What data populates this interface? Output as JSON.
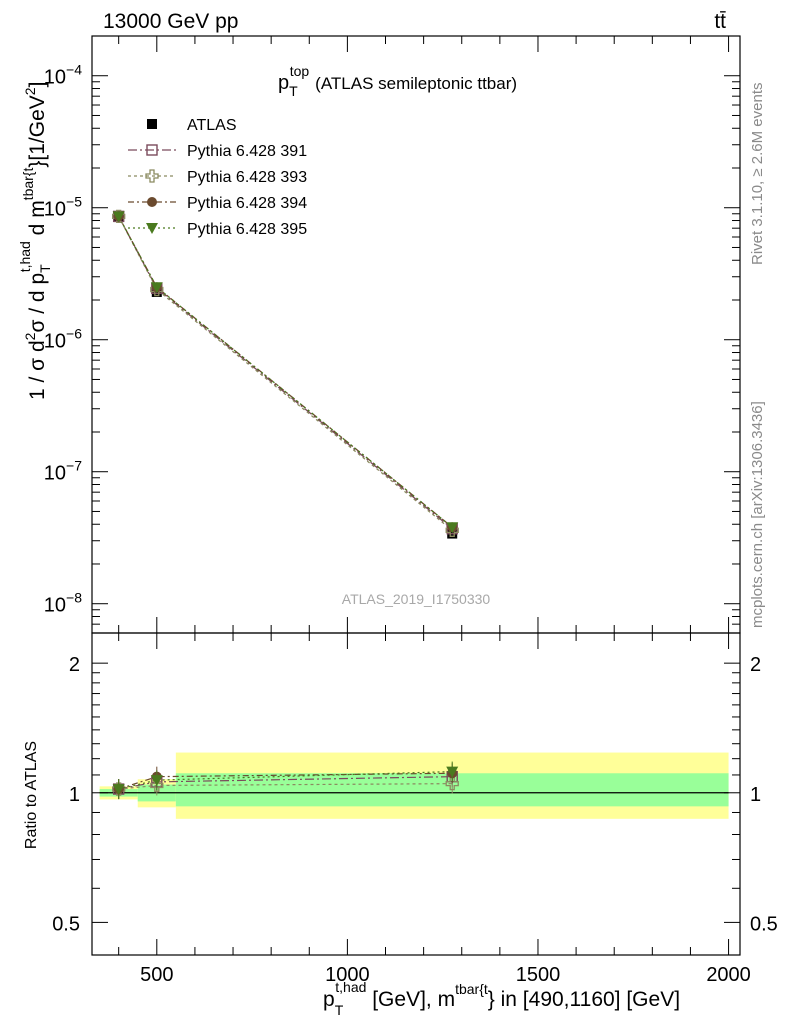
{
  "header": {
    "left": "13000 GeV pp",
    "right": "tt̄"
  },
  "side_text": {
    "rivet": "Rivet 3.1.10, ≥ 2.6M events",
    "mcplots": "mcplots.cern.ch [arXiv:1306.3436]"
  },
  "colors": {
    "atlas": "#000000",
    "py391": "#7b4b5c",
    "py393": "#8b8b60",
    "py394": "#6b4a2e",
    "py395": "#4a7a1e",
    "band_inner": "#99ff99",
    "band_outer": "#ffff99"
  },
  "chart_data": [
    {
      "type": "line",
      "title_main": "p",
      "title_sub": "T",
      "title_sup": "top",
      "title_rest": "(ATLAS semileptonic ttbar)",
      "ylabel_parts": {
        "a": "1 / σ d",
        "b": "2",
        "c": "σ / d p",
        "d": "T",
        "e": "t,had",
        "f": " d m",
        "g": "tbar{t",
        "h": "}[1/GeV",
        "i": "2",
        "j": "]"
      },
      "watermark": "ATLAS_2019_I1750330",
      "y_scale": "log",
      "xlim": [
        330,
        2030
      ],
      "ylim": [
        6e-09,
        0.0002
      ],
      "y_ticks": [
        {
          "v": 1e-08,
          "base": "10",
          "exp": "−8"
        },
        {
          "v": 1e-07,
          "base": "10",
          "exp": "−7"
        },
        {
          "v": 1e-06,
          "base": "10",
          "exp": "−6"
        },
        {
          "v": 1e-05,
          "base": "10",
          "exp": "−5"
        },
        {
          "v": 0.0001,
          "base": "10",
          "exp": "−4"
        }
      ],
      "legend_placement": "top-left",
      "series": [
        {
          "name": "ATLAS",
          "key": "atlas",
          "marker": "square-filled",
          "x": [
            400,
            500,
            1275
          ],
          "y": [
            8.5e-06,
            2.3e-06,
            3.4e-08
          ]
        },
        {
          "name": "Pythia 6.428 391",
          "key": "py391",
          "marker": "square-open",
          "x": [
            400,
            500,
            1275
          ],
          "y": [
            8.6e-06,
            2.45e-06,
            3.7e-08
          ]
        },
        {
          "name": "Pythia 6.428 393",
          "key": "py393",
          "marker": "cross-open",
          "x": [
            400,
            500,
            1275
          ],
          "y": [
            8.6e-06,
            2.4e-06,
            3.6e-08
          ]
        },
        {
          "name": "Pythia 6.428 394",
          "key": "py394",
          "marker": "circle-filled",
          "x": [
            400,
            500,
            1275
          ],
          "y": [
            8.6e-06,
            2.5e-06,
            3.8e-08
          ]
        },
        {
          "name": "Pythia 6.428 395",
          "key": "py395",
          "marker": "triangle-down",
          "x": [
            400,
            500,
            1275
          ],
          "y": [
            8.6e-06,
            2.5e-06,
            3.8e-08
          ]
        }
      ]
    },
    {
      "type": "line",
      "ylabel": "Ratio to ATLAS",
      "xlabel_parts": {
        "a": "p",
        "b": "T",
        "c": "t,had",
        "d": " [GeV], m",
        "e": "tbar{t",
        "f": "} in [490,1160] [GeV]"
      },
      "y_scale": "log",
      "xlim": [
        330,
        2030
      ],
      "ylim": [
        0.42,
        2.35
      ],
      "x_ticks": [
        500,
        1000,
        1500,
        2000
      ],
      "y_ticks": [
        0.5,
        1,
        2
      ],
      "reference_line": 1,
      "bands": [
        {
          "x0": 350,
          "x1": 450,
          "inner": [
            0.98,
            1.02
          ],
          "outer": [
            0.965,
            1.035
          ]
        },
        {
          "x0": 450,
          "x1": 550,
          "inner": [
            0.955,
            1.045
          ],
          "outer": [
            0.925,
            1.075
          ]
        },
        {
          "x0": 550,
          "x1": 2000,
          "inner": [
            0.93,
            1.11
          ],
          "outer": [
            0.87,
            1.24
          ]
        }
      ],
      "series": [
        {
          "key": "py391",
          "x": [
            400,
            500,
            1275
          ],
          "y": [
            1.02,
            1.06,
            1.09
          ]
        },
        {
          "key": "py393",
          "x": [
            400,
            500,
            1275
          ],
          "y": [
            1.02,
            1.04,
            1.05
          ]
        },
        {
          "key": "py394",
          "x": [
            400,
            500,
            1275
          ],
          "y": [
            1.02,
            1.09,
            1.11
          ]
        },
        {
          "key": "py395",
          "x": [
            400,
            500,
            1275
          ],
          "y": [
            1.02,
            1.07,
            1.12
          ]
        }
      ]
    }
  ]
}
